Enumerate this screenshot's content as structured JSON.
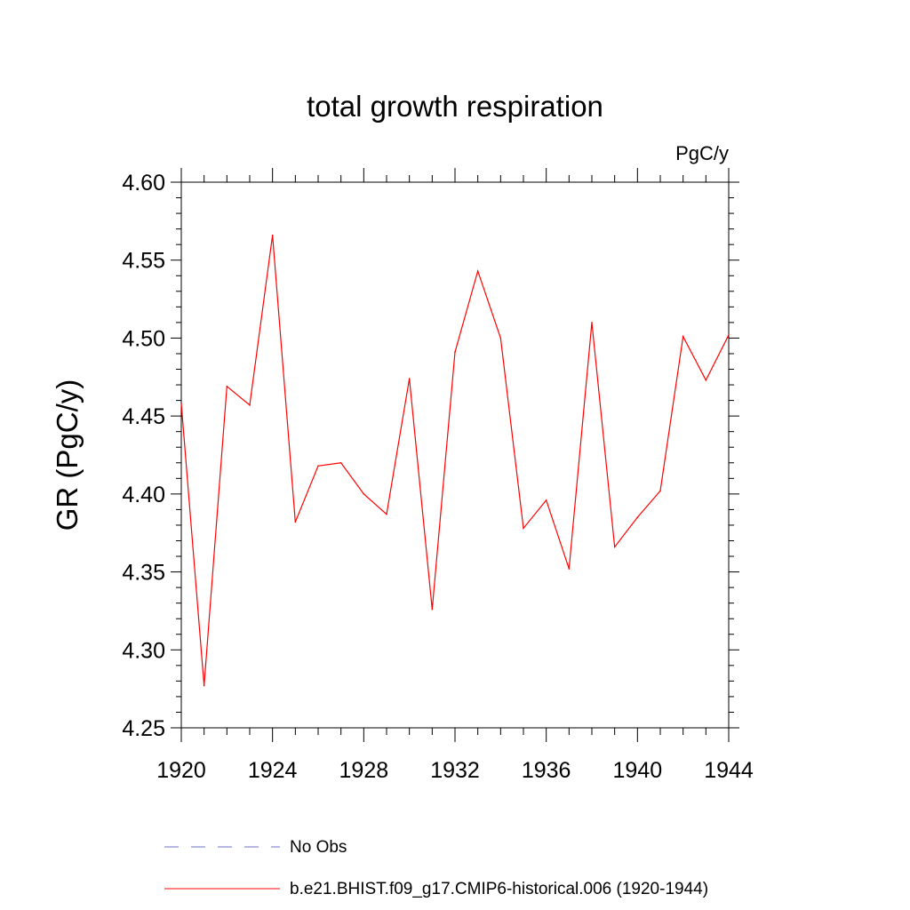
{
  "chart_data": {
    "type": "line",
    "title": "total growth respiration",
    "units": "PgC/y",
    "ylabel": "GR  (PgC/y)",
    "xlabel": "",
    "xlim": [
      1920,
      1944
    ],
    "ylim": [
      4.25,
      4.6
    ],
    "x_ticks": [
      "1920",
      "1924",
      "1928",
      "1932",
      "1936",
      "1940",
      "1944"
    ],
    "y_ticks": [
      "4.25",
      "4.30",
      "4.35",
      "4.40",
      "4.45",
      "4.50",
      "4.55",
      "4.60"
    ],
    "grid": false,
    "legend_position": "bottom",
    "x": [
      1920,
      1921,
      1922,
      1923,
      1924,
      1925,
      1926,
      1927,
      1928,
      1929,
      1930,
      1931,
      1932,
      1933,
      1934,
      1935,
      1936,
      1937,
      1938,
      1939,
      1940,
      1941,
      1942,
      1943,
      1944
    ],
    "series": [
      {
        "name": "b.e21.BHIST.f09_g17.CMIP6-historical.006 (1920-1944)",
        "color": "#ff0000",
        "values": [
          4.458,
          4.277,
          4.469,
          4.457,
          4.566,
          4.382,
          4.418,
          4.42,
          4.4,
          4.387,
          4.474,
          4.326,
          4.491,
          4.543,
          4.5,
          4.378,
          4.396,
          4.352,
          4.51,
          4.366,
          4.385,
          4.402,
          4.501,
          4.473,
          4.502
        ]
      }
    ],
    "legend": [
      {
        "label": "No Obs",
        "color": "#6f6fc8",
        "style": "dashed"
      },
      {
        "label": "b.e21.BHIST.f09_g17.CMIP6-historical.006 (1920-1944)",
        "color": "#ff0000",
        "style": "solid"
      }
    ]
  }
}
